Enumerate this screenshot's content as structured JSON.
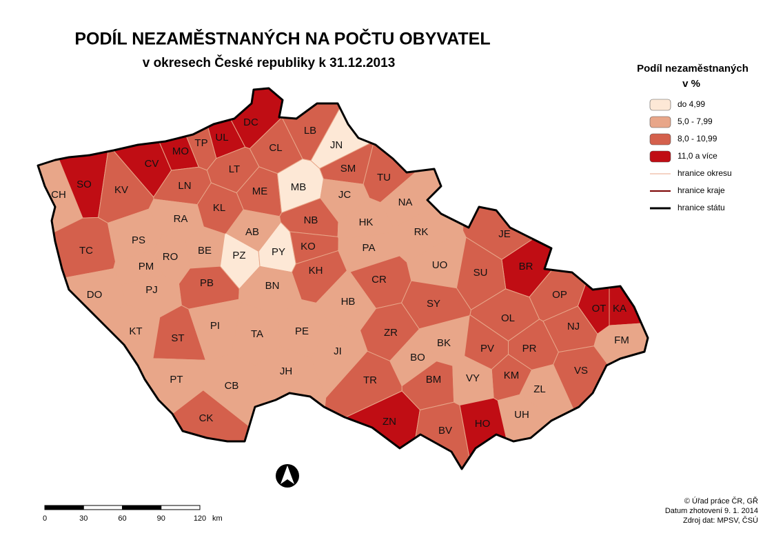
{
  "title": "PODÍL NEZAMĚSTNANÝCH NA POČTU OBYVATEL",
  "subtitle": "v okresech České republiky k 31.12.2013",
  "legend": {
    "title": "Podíl nezaměstnaných",
    "title_unit": "v %",
    "classes": [
      {
        "label": "do 4,99",
        "color": "#fde8d6"
      },
      {
        "label": "5,0 - 7,99",
        "color": "#e8a689"
      },
      {
        "label": "8,0 - 10,99",
        "color": "#d4604c"
      },
      {
        "label": "11,0 a více",
        "color": "#c00d14"
      }
    ],
    "lines": [
      {
        "label": "hranice okresu",
        "color": "#e8a689",
        "width": 1
      },
      {
        "label": "hranice kraje",
        "color": "#7a0000",
        "width": 2
      },
      {
        "label": "hranice státu",
        "color": "#000000",
        "width": 3
      }
    ]
  },
  "districts": [
    {
      "label": "CH",
      "class": 1
    },
    {
      "label": "SO",
      "class": 3
    },
    {
      "label": "KV",
      "class": 2
    },
    {
      "label": "CV",
      "class": 3
    },
    {
      "label": "MO",
      "class": 3
    },
    {
      "label": "TP",
      "class": 2
    },
    {
      "label": "UL",
      "class": 3
    },
    {
      "label": "DC",
      "class": 3
    },
    {
      "label": "LB",
      "class": 2
    },
    {
      "label": "CL",
      "class": 2
    },
    {
      "label": "JN",
      "class": 0
    },
    {
      "label": "LT",
      "class": 2
    },
    {
      "label": "SM",
      "class": 2
    },
    {
      "label": "LN",
      "class": 2
    },
    {
      "label": "ME",
      "class": 2
    },
    {
      "label": "MB",
      "class": 0
    },
    {
      "label": "TU",
      "class": 2
    },
    {
      "label": "JC",
      "class": 1
    },
    {
      "label": "NA",
      "class": 1
    },
    {
      "label": "KL",
      "class": 2
    },
    {
      "label": "RA",
      "class": 1
    },
    {
      "label": "AB",
      "class": 1
    },
    {
      "label": "NB",
      "class": 2
    },
    {
      "label": "HK",
      "class": 1
    },
    {
      "label": "RK",
      "class": 1
    },
    {
      "label": "TC",
      "class": 2
    },
    {
      "label": "PS",
      "class": 1
    },
    {
      "label": "BE",
      "class": 1
    },
    {
      "label": "PZ",
      "class": 0
    },
    {
      "label": "PY",
      "class": 0
    },
    {
      "label": "KO",
      "class": 2
    },
    {
      "label": "PA",
      "class": 1
    },
    {
      "label": "PM",
      "class": 1
    },
    {
      "label": "RO",
      "class": 1
    },
    {
      "label": "UO",
      "class": 1
    },
    {
      "label": "JE",
      "class": 2
    },
    {
      "label": "BR",
      "class": 3
    },
    {
      "label": "SU",
      "class": 2
    },
    {
      "label": "PB",
      "class": 2
    },
    {
      "label": "KH",
      "class": 2
    },
    {
      "label": "CR",
      "class": 2
    },
    {
      "label": "BN",
      "class": 1
    },
    {
      "label": "DO",
      "class": 1
    },
    {
      "label": "PJ",
      "class": 1
    },
    {
      "label": "HB",
      "class": 1
    },
    {
      "label": "SY",
      "class": 2
    },
    {
      "label": "OP",
      "class": 2
    },
    {
      "label": "OT",
      "class": 3
    },
    {
      "label": "KA",
      "class": 3
    },
    {
      "label": "OL",
      "class": 2
    },
    {
      "label": "NJ",
      "class": 2
    },
    {
      "label": "KT",
      "class": 1
    },
    {
      "label": "ST",
      "class": 2
    },
    {
      "label": "PI",
      "class": 1
    },
    {
      "label": "TA",
      "class": 1
    },
    {
      "label": "PE",
      "class": 1
    },
    {
      "label": "ZR",
      "class": 2
    },
    {
      "label": "BK",
      "class": 1
    },
    {
      "label": "FM",
      "class": 1
    },
    {
      "label": "JI",
      "class": 1
    },
    {
      "label": "PV",
      "class": 2
    },
    {
      "label": "PR",
      "class": 2
    },
    {
      "label": "BO",
      "class": 1
    },
    {
      "label": "JH",
      "class": 1
    },
    {
      "label": "VS",
      "class": 2
    },
    {
      "label": "KM",
      "class": 2
    },
    {
      "label": "BM",
      "class": 2
    },
    {
      "label": "VY",
      "class": 1
    },
    {
      "label": "TR",
      "class": 2
    },
    {
      "label": "PT",
      "class": 1
    },
    {
      "label": "CB",
      "class": 1
    },
    {
      "label": "ZL",
      "class": 1
    },
    {
      "label": "UH",
      "class": 1
    },
    {
      "label": "CK",
      "class": 2
    },
    {
      "label": "ZN",
      "class": 3
    },
    {
      "label": "BV",
      "class": 2
    },
    {
      "label": "HO",
      "class": 3
    }
  ],
  "scale_bar": {
    "ticks": [
      0,
      30,
      60,
      90,
      120
    ],
    "unit": "km"
  },
  "credits": [
    "© Úřad práce ČR, GŘ",
    "Datum zhotovení 9. 1. 2014",
    "Zdroj dat: MPSV, ČSÚ"
  ]
}
